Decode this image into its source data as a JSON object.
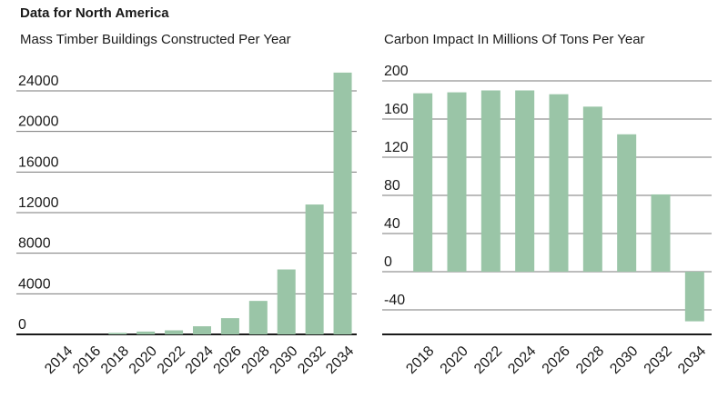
{
  "header": "Data for North America",
  "chart_data": [
    {
      "type": "bar",
      "title": "Mass Timber Buildings Constructed Per Year",
      "xlabel": "",
      "ylabel": "",
      "categories": [
        "2014",
        "2016",
        "2018",
        "2020",
        "2022",
        "2024",
        "2026",
        "2028",
        "2030",
        "2032",
        "2034"
      ],
      "values": [
        0,
        0,
        150,
        280,
        400,
        800,
        1600,
        3300,
        6400,
        12800,
        25800
      ],
      "ylim": [
        0,
        26000
      ],
      "yticks": [
        0,
        4000,
        8000,
        12000,
        16000,
        20000,
        24000
      ],
      "grid": true,
      "bar_color": "#9ac5a7"
    },
    {
      "type": "bar",
      "title": "Carbon Impact In Millions Of Tons Per Year",
      "xlabel": "",
      "ylabel": "",
      "categories": [
        "2018",
        "2020",
        "2022",
        "2024",
        "2026",
        "2028",
        "2030",
        "2032",
        "2034"
      ],
      "values": [
        187,
        188,
        190,
        190,
        186,
        173,
        144,
        81,
        -52
      ],
      "ylim": [
        -65,
        210
      ],
      "yticks": [
        -40,
        0,
        40,
        80,
        120,
        160,
        200
      ],
      "grid": true,
      "bar_color": "#9ac5a7"
    }
  ]
}
